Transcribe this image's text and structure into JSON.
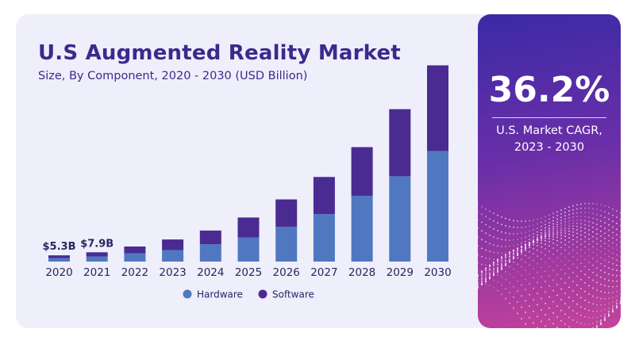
{
  "header": {
    "title": "U.S Augmented Reality Market",
    "subtitle": "Size, By Component, 2020 - 2030 (USD Billion)"
  },
  "highlight": {
    "value": "36.2%",
    "label_line1": "U.S. Market CAGR,",
    "label_line2": "2023 - 2030"
  },
  "colors": {
    "hardware": "#4f78c0",
    "software": "#4a2b91",
    "title": "#3b2a8c",
    "panel_start": "#3b2aa6",
    "panel_end": "#c4449b"
  },
  "chart_data": {
    "type": "bar",
    "stacked": true,
    "categories": [
      "2020",
      "2021",
      "2022",
      "2023",
      "2024",
      "2025",
      "2026",
      "2027",
      "2028",
      "2029",
      "2030"
    ],
    "series": [
      {
        "name": "Hardware",
        "values": [
          2.9,
          4.3,
          7.0,
          9.8,
          14.8,
          20.5,
          29.5,
          40.4,
          56.0,
          72.6,
          94.0
        ]
      },
      {
        "name": "Software",
        "values": [
          2.4,
          3.6,
          5.8,
          9.0,
          11.6,
          17.0,
          23.4,
          31.6,
          41.4,
          57.1,
          73.0
        ]
      }
    ],
    "data_labels": [
      {
        "category": "2020",
        "text": "$5.3B"
      },
      {
        "category": "2021",
        "text": "$7.9B"
      }
    ],
    "ylim": [
      0,
      170
    ],
    "grid": false,
    "legend": "bottom-center",
    "xlabel": "",
    "ylabel": ""
  }
}
